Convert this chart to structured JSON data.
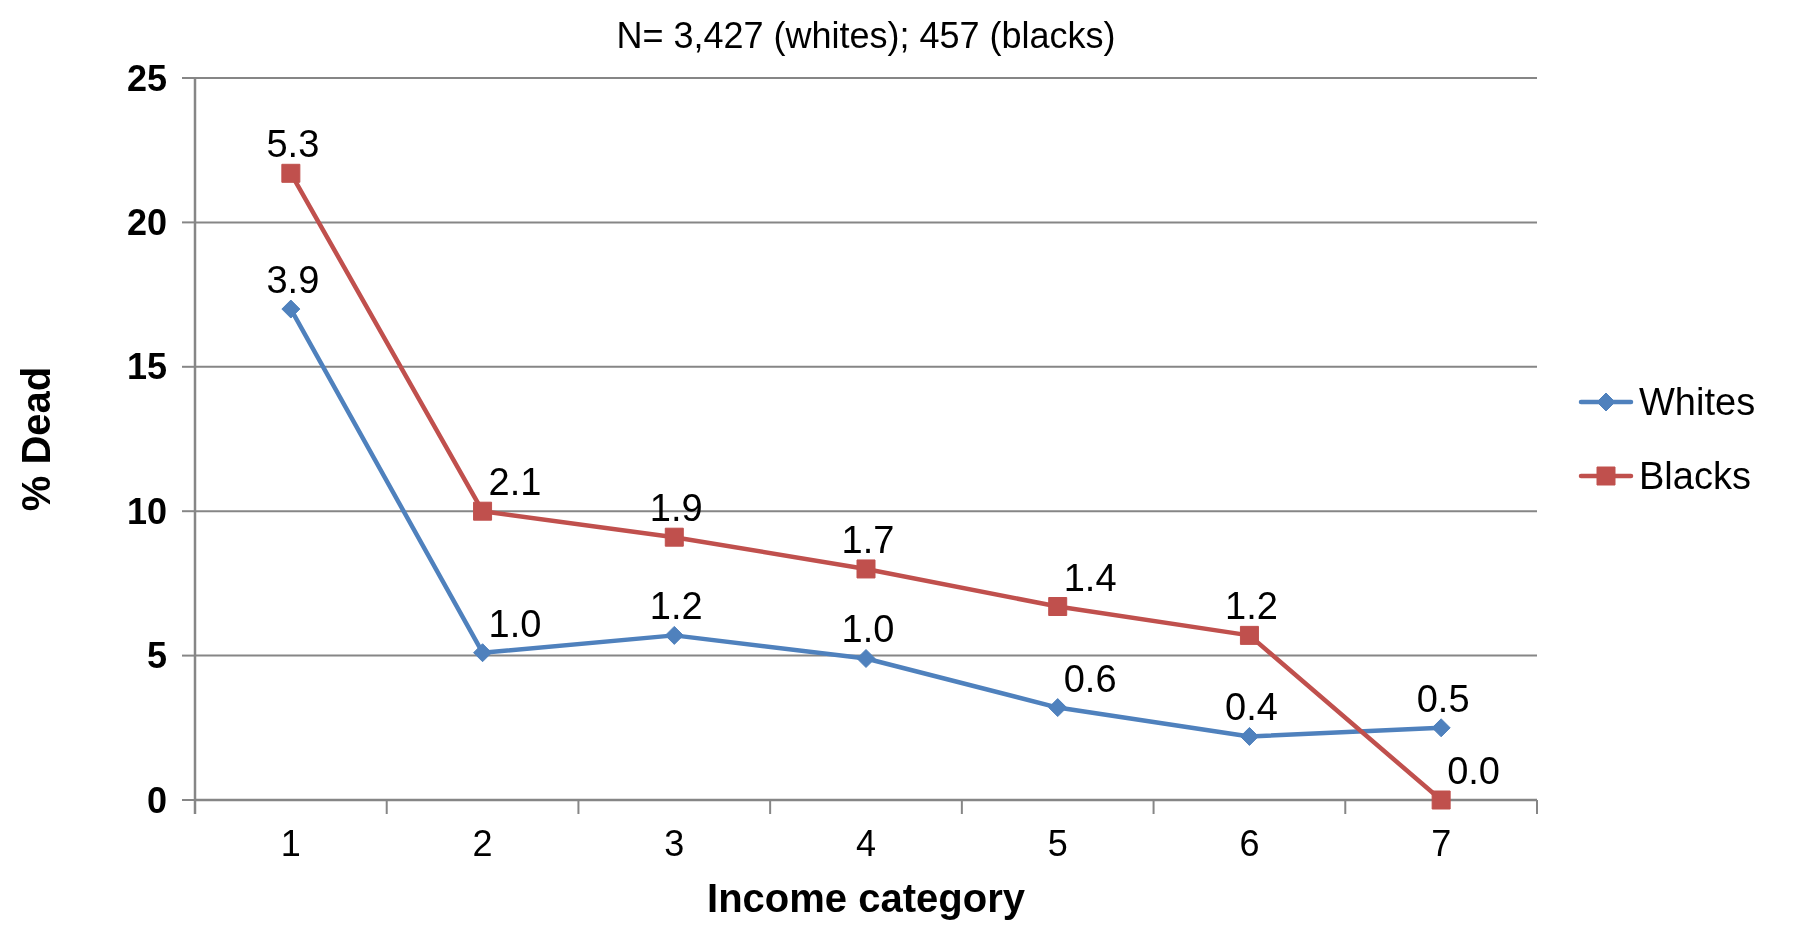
{
  "chart_data": {
    "type": "line",
    "title": "N= 3,427 (whites); 457 (blacks)",
    "xlabel": "Income category",
    "ylabel": "% Dead",
    "categories": [
      "1",
      "2",
      "3",
      "4",
      "5",
      "6",
      "7"
    ],
    "ylim": [
      0,
      25
    ],
    "yticks": [
      0,
      5,
      10,
      15,
      20,
      25
    ],
    "grid": "y",
    "legend": "right",
    "line_style": "solid",
    "series": [
      {
        "name": "Whites",
        "color": "#4f81bd",
        "marker": "diamond",
        "values": [
          17.0,
          5.1,
          5.7,
          4.9,
          3.2,
          2.2,
          2.5
        ]
      },
      {
        "name": "Blacks",
        "color": "#c0504d",
        "marker": "square",
        "values": [
          21.7,
          10.0,
          9.1,
          8.0,
          6.7,
          5.7,
          0.0
        ]
      }
    ],
    "annotations": [
      {
        "text": "3.9",
        "x": "1",
        "y": 17.0
      },
      {
        "text": "1.0",
        "x": "2",
        "y": 5.1
      },
      {
        "text": "1.2",
        "x": "3",
        "y": 5.7
      },
      {
        "text": "1.0",
        "x": "4",
        "y": 4.9
      },
      {
        "text": "0.6",
        "x": "5",
        "y": 3.2
      },
      {
        "text": "0.4",
        "x": "6",
        "y": 2.2
      },
      {
        "text": "0.5",
        "x": "7",
        "y": 2.5
      },
      {
        "text": "5.3",
        "x": "1",
        "y": 21.7
      },
      {
        "text": "2.1",
        "x": "2",
        "y": 10.0
      },
      {
        "text": "1.9",
        "x": "3",
        "y": 9.1
      },
      {
        "text": "1.7",
        "x": "4",
        "y": 8.0
      },
      {
        "text": "1.4",
        "x": "5",
        "y": 6.7
      },
      {
        "text": "1.2",
        "x": "6",
        "y": 5.7
      },
      {
        "text": "0.0",
        "x": "7",
        "y": 0.0
      }
    ]
  }
}
